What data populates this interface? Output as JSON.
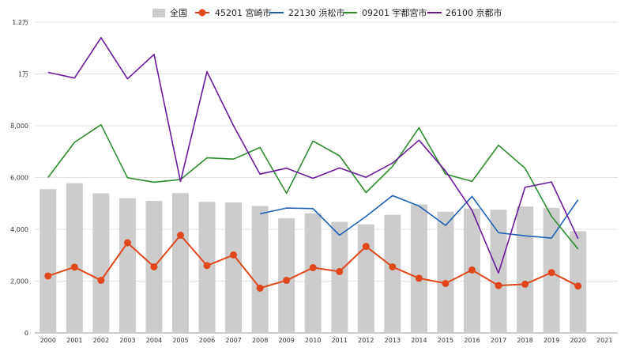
{
  "chart_data": {
    "type": "bar",
    "categories": [
      "2000",
      "2001",
      "2002",
      "2003",
      "2004",
      "2005",
      "2006",
      "2007",
      "2008",
      "2009",
      "2010",
      "2011",
      "2012",
      "2013",
      "2014",
      "2015",
      "2016",
      "2017",
      "2018",
      "2019",
      "2020",
      "2021"
    ],
    "ylim": [
      0,
      12000
    ],
    "y_ticks": [
      0,
      2000,
      4000,
      6000,
      8000,
      10000,
      12000
    ],
    "y_tick_labels": [
      "0",
      "2,000",
      "4,000",
      "6,000",
      "8,000",
      "1万",
      "1.2万"
    ],
    "grid": true,
    "legend_position": "top",
    "series": [
      {
        "name": "全国",
        "kind": "bar",
        "color": "#cccccc",
        "values": [
          5550,
          5780,
          5390,
          5200,
          5100,
          5400,
          5060,
          5040,
          4900,
          4430,
          4620,
          4290,
          4190,
          4560,
          4960,
          4680,
          4800,
          4760,
          4880,
          4830,
          3930,
          null
        ]
      },
      {
        "name": "45201 宮崎市",
        "kind": "line-marker",
        "color": "#e0481c",
        "values": [
          2200,
          2540,
          2030,
          3480,
          2550,
          3770,
          2600,
          3010,
          1730,
          2030,
          2520,
          2370,
          3340,
          2550,
          2110,
          1910,
          2430,
          1830,
          1880,
          2330,
          1810,
          null
        ]
      },
      {
        "name": "22130 浜松市",
        "kind": "line",
        "color": "#1f5fb6",
        "values": [
          null,
          null,
          null,
          null,
          null,
          null,
          null,
          null,
          4600,
          4820,
          4800,
          3770,
          4500,
          5300,
          4900,
          4150,
          5270,
          3870,
          3750,
          3660,
          5140,
          null
        ]
      },
      {
        "name": "09201 宇都宮市",
        "kind": "line",
        "color": "#2e8b2e",
        "values": [
          6000,
          7360,
          8040,
          5990,
          5820,
          5920,
          6760,
          6710,
          7160,
          5390,
          7410,
          6840,
          5420,
          6430,
          7920,
          6130,
          5850,
          7250,
          6360,
          4500,
          3240,
          null
        ]
      },
      {
        "name": "26100 京都市",
        "kind": "line",
        "color": "#6a1b9a",
        "values": [
          10060,
          9840,
          11400,
          9810,
          10750,
          5850,
          10090,
          8000,
          6130,
          6360,
          5970,
          6370,
          6010,
          6560,
          7440,
          6250,
          4730,
          2310,
          5620,
          5830,
          3640,
          null
        ]
      }
    ]
  }
}
